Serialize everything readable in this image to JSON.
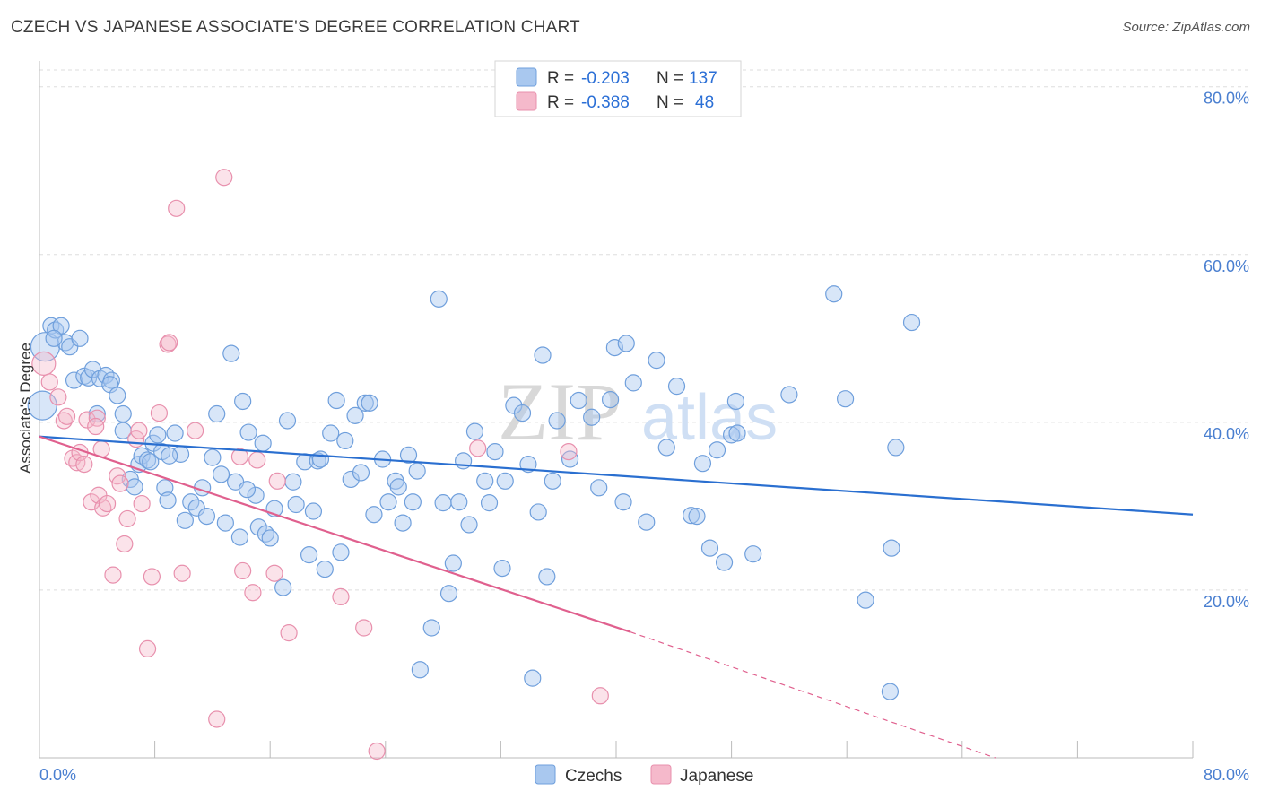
{
  "title": "CZECH VS JAPANESE ASSOCIATE'S DEGREE CORRELATION CHART",
  "source": "Source: ZipAtlas.com",
  "watermark": {
    "zip": "ZIP",
    "atlas": "atlas"
  },
  "colors": {
    "czech_fill": "#a9c8ef",
    "czech_stroke": "#6f9fdc",
    "czech_line": "#2a6fd0",
    "japanese_fill": "#f5b9cb",
    "japanese_stroke": "#e890ad",
    "japanese_line": "#e0608e",
    "grid": "#dddddd",
    "tick_text": "#4a7fd0"
  },
  "legend_top": {
    "rows": [
      {
        "r_label": "R =",
        "r_value": "-0.203",
        "n_label": "N =",
        "n_value": "137"
      },
      {
        "r_label": "R =",
        "r_value": "-0.388",
        "n_label": "N =",
        "n_value": "48"
      }
    ]
  },
  "chart_data": {
    "type": "scatter",
    "title": "CZECH VS JAPANESE ASSOCIATE'S DEGREE CORRELATION CHART",
    "xlabel": "",
    "ylabel": "Associate's Degree",
    "xlim": [
      0,
      80
    ],
    "ylim": [
      0,
      82
    ],
    "x_ticks": [
      {
        "value": 0,
        "label": "0.0%"
      },
      {
        "value": 80,
        "label": "80.0%"
      }
    ],
    "y_ticks": [
      {
        "value": 20,
        "label": "20.0%"
      },
      {
        "value": 40,
        "label": "40.0%"
      },
      {
        "value": 60,
        "label": "60.0%"
      },
      {
        "value": 80,
        "label": "80.0%"
      }
    ],
    "grid": true,
    "legend_placement": "top-center and bottom",
    "series": [
      {
        "name": "Czechs",
        "r": -0.203,
        "n": 137,
        "trend": {
          "x0": 0,
          "y0": 38.3,
          "x1": 80,
          "y1": 29.0,
          "dashed_from": null
        },
        "points": [
          [
            0.2,
            42.0
          ],
          [
            0.4,
            49.0
          ],
          [
            0.8,
            51.5
          ],
          [
            1.1,
            51.0
          ],
          [
            1.5,
            51.5
          ],
          [
            1.8,
            49.5
          ],
          [
            2.1,
            49.0
          ],
          [
            2.8,
            50.0
          ],
          [
            2.4,
            45.0
          ],
          [
            3.1,
            45.5
          ],
          [
            3.4,
            45.3
          ],
          [
            3.7,
            46.3
          ],
          [
            4.2,
            45.2
          ],
          [
            4.6,
            45.6
          ],
          [
            5.0,
            45.0
          ],
          [
            4.9,
            44.5
          ],
          [
            5.4,
            43.2
          ],
          [
            4.0,
            41.0
          ],
          [
            5.8,
            41.0
          ],
          [
            5.8,
            39.0
          ],
          [
            6.3,
            33.2
          ],
          [
            6.6,
            32.3
          ],
          [
            6.9,
            35.0
          ],
          [
            7.1,
            36.0
          ],
          [
            7.5,
            35.5
          ],
          [
            7.7,
            35.3
          ],
          [
            7.9,
            37.5
          ],
          [
            8.2,
            38.5
          ],
          [
            8.5,
            36.5
          ],
          [
            8.7,
            32.2
          ],
          [
            8.9,
            30.7
          ],
          [
            9.4,
            38.7
          ],
          [
            9.8,
            36.2
          ],
          [
            10.1,
            28.3
          ],
          [
            10.5,
            30.5
          ],
          [
            10.9,
            29.8
          ],
          [
            11.3,
            32.2
          ],
          [
            11.6,
            28.8
          ],
          [
            12.0,
            35.8
          ],
          [
            12.3,
            41.0
          ],
          [
            12.6,
            33.8
          ],
          [
            12.9,
            28.0
          ],
          [
            13.3,
            48.2
          ],
          [
            13.6,
            32.9
          ],
          [
            13.9,
            26.3
          ],
          [
            14.1,
            42.5
          ],
          [
            14.5,
            38.8
          ],
          [
            15.0,
            31.3
          ],
          [
            15.2,
            27.5
          ],
          [
            15.5,
            37.5
          ],
          [
            15.7,
            26.7
          ],
          [
            16.0,
            26.2
          ],
          [
            16.3,
            29.7
          ],
          [
            16.9,
            20.3
          ],
          [
            17.2,
            40.2
          ],
          [
            17.6,
            32.9
          ],
          [
            17.8,
            30.2
          ],
          [
            18.4,
            35.3
          ],
          [
            18.7,
            24.2
          ],
          [
            19.0,
            29.4
          ],
          [
            19.3,
            35.4
          ],
          [
            19.5,
            35.6
          ],
          [
            19.8,
            22.5
          ],
          [
            20.2,
            38.7
          ],
          [
            20.6,
            42.6
          ],
          [
            20.9,
            24.5
          ],
          [
            21.2,
            37.8
          ],
          [
            21.6,
            33.2
          ],
          [
            21.9,
            40.8
          ],
          [
            22.3,
            34.0
          ],
          [
            22.6,
            42.3
          ],
          [
            22.9,
            42.3
          ],
          [
            23.2,
            29.0
          ],
          [
            23.8,
            35.6
          ],
          [
            24.2,
            30.5
          ],
          [
            24.7,
            33.0
          ],
          [
            24.9,
            32.3
          ],
          [
            25.2,
            28.0
          ],
          [
            25.6,
            36.1
          ],
          [
            25.9,
            30.5
          ],
          [
            26.2,
            34.2
          ],
          [
            27.2,
            15.5
          ],
          [
            27.7,
            54.7
          ],
          [
            28.0,
            30.4
          ],
          [
            28.4,
            19.6
          ],
          [
            28.7,
            23.2
          ],
          [
            29.1,
            30.5
          ],
          [
            29.4,
            35.4
          ],
          [
            29.8,
            27.8
          ],
          [
            30.2,
            38.9
          ],
          [
            30.9,
            33.0
          ],
          [
            31.2,
            30.4
          ],
          [
            31.6,
            36.5
          ],
          [
            32.1,
            22.6
          ],
          [
            32.3,
            33.0
          ],
          [
            32.9,
            42.0
          ],
          [
            33.5,
            41.1
          ],
          [
            33.9,
            35.0
          ],
          [
            34.6,
            29.3
          ],
          [
            34.9,
            48.0
          ],
          [
            35.2,
            21.6
          ],
          [
            35.6,
            33.0
          ],
          [
            35.9,
            40.2
          ],
          [
            36.8,
            35.6
          ],
          [
            37.4,
            42.6
          ],
          [
            38.3,
            40.6
          ],
          [
            38.8,
            32.2
          ],
          [
            39.6,
            42.7
          ],
          [
            39.9,
            48.9
          ],
          [
            40.7,
            49.4
          ],
          [
            40.5,
            30.5
          ],
          [
            41.2,
            44.7
          ],
          [
            42.1,
            28.1
          ],
          [
            42.8,
            47.4
          ],
          [
            43.5,
            37.0
          ],
          [
            44.2,
            44.3
          ],
          [
            45.2,
            28.9
          ],
          [
            45.6,
            28.8
          ],
          [
            46.0,
            35.1
          ],
          [
            46.5,
            25.0
          ],
          [
            47.0,
            36.7
          ],
          [
            47.5,
            23.3
          ],
          [
            48.0,
            38.5
          ],
          [
            48.3,
            42.5
          ],
          [
            48.4,
            38.7
          ],
          [
            49.5,
            24.3
          ],
          [
            52.0,
            43.3
          ],
          [
            55.1,
            55.3
          ],
          [
            55.9,
            42.8
          ],
          [
            57.3,
            18.8
          ],
          [
            59.1,
            25.0
          ],
          [
            59.4,
            37.0
          ],
          [
            60.5,
            51.9
          ],
          [
            26.4,
            10.5
          ],
          [
            34.2,
            9.5
          ],
          [
            59.0,
            7.9
          ],
          [
            1.0,
            50.0
          ],
          [
            9.0,
            36.0
          ],
          [
            14.4,
            32.0
          ]
        ]
      },
      {
        "name": "Japanese",
        "r": -0.388,
        "n": 48,
        "trend": {
          "x0": 0,
          "y0": 38.3,
          "x1": 41.0,
          "y1": 15.0,
          "dashed_from": 41.0,
          "dash_x1": 66.3,
          "dash_y1": 0.0
        },
        "points": [
          [
            0.3,
            47.0
          ],
          [
            0.7,
            44.8
          ],
          [
            1.3,
            43.0
          ],
          [
            1.7,
            40.2
          ],
          [
            1.9,
            40.7
          ],
          [
            2.3,
            35.7
          ],
          [
            2.6,
            35.2
          ],
          [
            2.8,
            36.4
          ],
          [
            3.1,
            35.0
          ],
          [
            3.3,
            40.3
          ],
          [
            3.6,
            30.5
          ],
          [
            4.0,
            40.5
          ],
          [
            4.1,
            31.3
          ],
          [
            4.4,
            29.8
          ],
          [
            4.7,
            30.3
          ],
          [
            5.1,
            21.8
          ],
          [
            5.4,
            33.6
          ],
          [
            5.6,
            32.7
          ],
          [
            5.9,
            25.5
          ],
          [
            6.1,
            28.5
          ],
          [
            6.7,
            38.0
          ],
          [
            6.9,
            39.0
          ],
          [
            7.1,
            30.3
          ],
          [
            7.5,
            13.0
          ],
          [
            7.8,
            21.6
          ],
          [
            8.3,
            41.1
          ],
          [
            8.9,
            49.3
          ],
          [
            9.0,
            49.5
          ],
          [
            9.5,
            65.5
          ],
          [
            9.9,
            22.0
          ],
          [
            10.8,
            39.0
          ],
          [
            12.3,
            4.6
          ],
          [
            12.8,
            69.2
          ],
          [
            13.9,
            35.9
          ],
          [
            14.1,
            22.3
          ],
          [
            14.8,
            19.7
          ],
          [
            15.1,
            35.5
          ],
          [
            16.3,
            22.0
          ],
          [
            16.5,
            33.0
          ],
          [
            17.3,
            14.9
          ],
          [
            20.9,
            19.2
          ],
          [
            22.5,
            15.5
          ],
          [
            23.4,
            0.8
          ],
          [
            30.4,
            36.9
          ],
          [
            36.7,
            36.5
          ],
          [
            38.9,
            7.4
          ],
          [
            4.3,
            36.8
          ],
          [
            3.9,
            39.5
          ]
        ]
      }
    ]
  },
  "legend_bottom": [
    {
      "label": "Czechs"
    },
    {
      "label": "Japanese"
    }
  ]
}
